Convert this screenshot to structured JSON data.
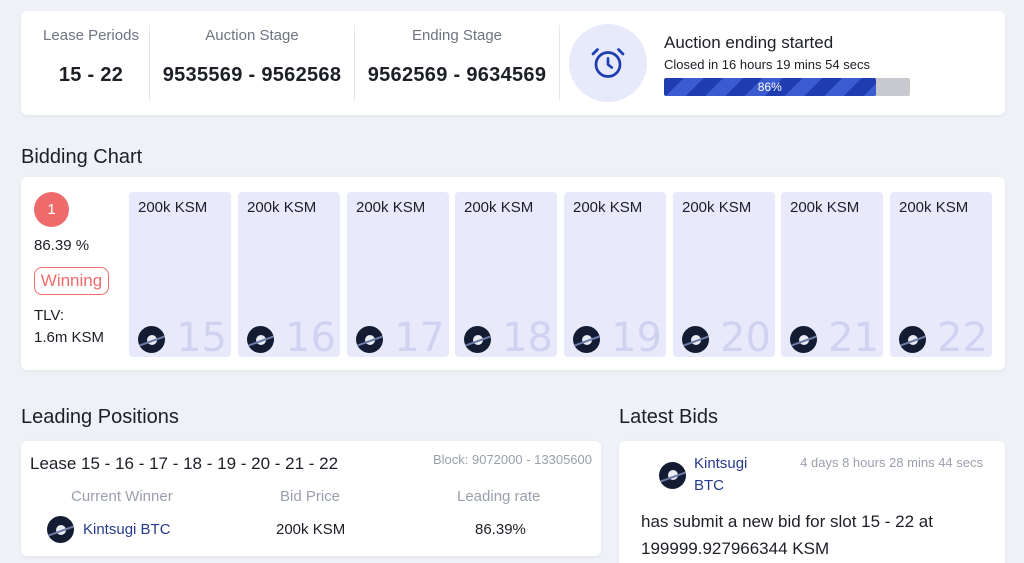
{
  "stages": [
    {
      "label": "Lease Periods",
      "value": "15 - 22"
    },
    {
      "label": "Auction Stage",
      "value": "9535569 - 9562568"
    },
    {
      "label": "Ending Stage",
      "value": "9562569 - 9634569"
    }
  ],
  "status": {
    "icon": "alarm-clock-icon",
    "title": "Auction ending started",
    "subtitle": "Closed in 16 hours 19 mins 54 secs",
    "progress_percent": 86,
    "progress_label": "86%"
  },
  "bidding_chart": {
    "title": "Bidding Chart",
    "rank": "1",
    "percent": "86.39 %",
    "status_badge": "Winning",
    "tlv_label": "TLV:",
    "tlv_value": "1.6m KSM",
    "slots": [
      {
        "amount": "200k KSM",
        "number": "15"
      },
      {
        "amount": "200k KSM",
        "number": "16"
      },
      {
        "amount": "200k KSM",
        "number": "17"
      },
      {
        "amount": "200k KSM",
        "number": "18"
      },
      {
        "amount": "200k KSM",
        "number": "19"
      },
      {
        "amount": "200k KSM",
        "number": "20"
      },
      {
        "amount": "200k KSM",
        "number": "21"
      },
      {
        "amount": "200k KSM",
        "number": "22"
      }
    ]
  },
  "leading_positions": {
    "title": "Leading Positions",
    "lease": "Lease 15 - 16 - 17 - 18 - 19 - 20 - 21 - 22",
    "block": "Block: 9072000 - 13305600",
    "columns": [
      "Current Winner",
      "Bid Price",
      "Leading rate"
    ],
    "row": {
      "winner": "Kintsugi BTC",
      "bid_price": "200k KSM",
      "leading_rate": "86.39%"
    }
  },
  "latest_bids": {
    "title": "Latest Bids",
    "bidder": "Kintsugi BTC",
    "time": "4 days 8 hours 28 mins 44 secs",
    "message": "has submit a new bid for slot 15 - 22 at 199999.927966344 KSM"
  },
  "colors": {
    "accent": "#1d3db1",
    "winning": "#ef6b6b",
    "slot_bg": "#e8eafb",
    "link": "#263a8f"
  }
}
